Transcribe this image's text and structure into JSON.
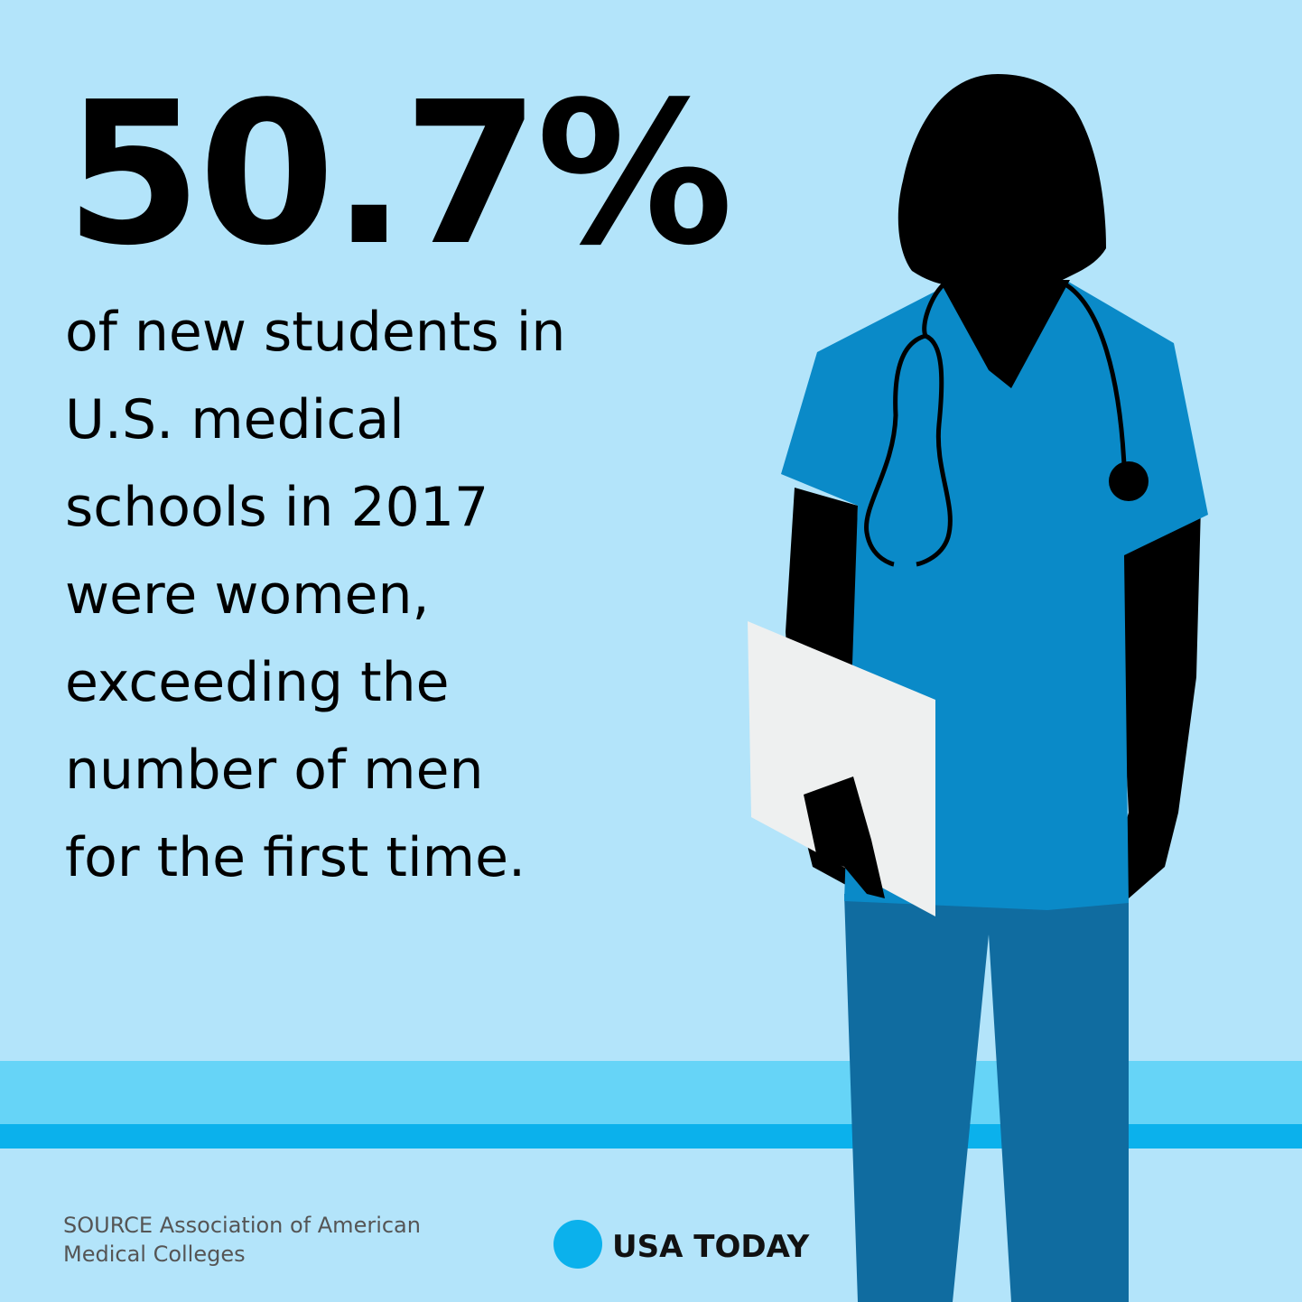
{
  "headline": "50.7%",
  "body": {
    "lines": [
      "of new students in",
      "U.S. medical",
      "schools in 2017",
      "were women,",
      "exceeding the",
      "number of men",
      "for the first time."
    ]
  },
  "source": {
    "lines": [
      "SOURCE Association of American",
      "Medical Colleges"
    ]
  },
  "logo": {
    "text": "USA TODAY"
  }
}
